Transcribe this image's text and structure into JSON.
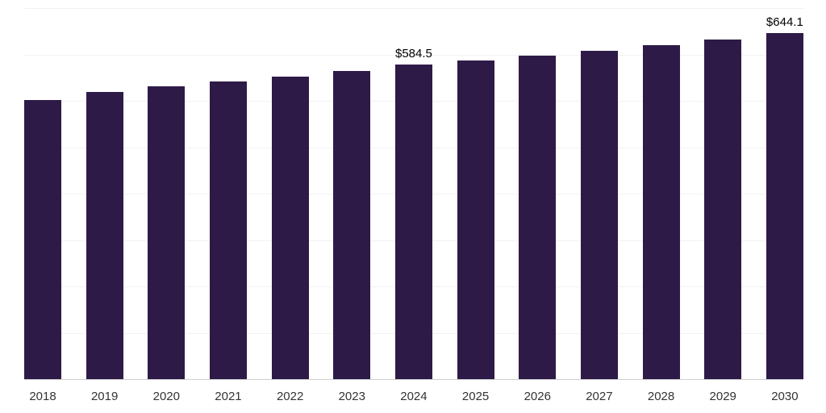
{
  "chart_data": {
    "type": "bar",
    "title": "",
    "xlabel": "",
    "ylabel": "",
    "categories": [
      "2018",
      "2019",
      "2020",
      "2021",
      "2022",
      "2023",
      "2024",
      "2025",
      "2026",
      "2027",
      "2028",
      "2029",
      "2030"
    ],
    "values": [
      519,
      534,
      545,
      553,
      562,
      573,
      584.5,
      592,
      601,
      611,
      621,
      632,
      644.1
    ],
    "data_labels": {
      "2024": "$584.5",
      "2030": "$644.1"
    },
    "ylim": [
      0,
      690
    ],
    "grid": "horizontal",
    "gridline_count": 8,
    "legend": "none",
    "bar_color": "#2e1a47",
    "gridline_color": "#f2f2f2",
    "axis_line_color": "#cfcfcf"
  }
}
